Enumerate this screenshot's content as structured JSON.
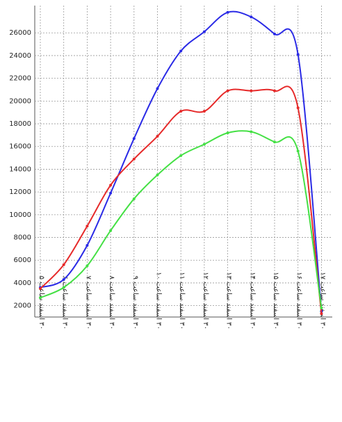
{
  "chart_data": {
    "type": "line",
    "categories": [
      "۳۰ اسفند ساعت ۵",
      "۳۰ اسفند ساعت ۶",
      "۳۰ اسفند ساعت ۷",
      "۳۰ اسفند ساعت ۸",
      "۳۰ اسفند ساعت ۹",
      "۳۰ اسفند ساعت ۱۰",
      "۳۰ اسفند ساعت ۱۱",
      "۳۰ اسفند ساعت ۱۲",
      "۳۰ اسفند ساعت ۱۳",
      "۳۰ اسفند ساعت ۱۴",
      "۳۰ اسفند ساعت ۱۵",
      "۳۰ اسفند ساعت ۱۶",
      "۳۰ اسفند ساعت ۱۷"
    ],
    "series": [
      {
        "color": "#2a2ae6",
        "values": [
          3600,
          4300,
          7300,
          11900,
          16700,
          21100,
          24400,
          26100,
          27800,
          27400,
          25900,
          24100,
          1500
        ]
      },
      {
        "color": "#e62a2a",
        "values": [
          3500,
          5600,
          9000,
          12600,
          14900,
          16900,
          19100,
          19100,
          20900,
          20900,
          20900,
          19400,
          1300
        ]
      },
      {
        "color": "#44e044",
        "values": [
          2700,
          3600,
          5500,
          8600,
          11400,
          13500,
          15200,
          16200,
          17200,
          17300,
          16400,
          15600,
          1800
        ]
      }
    ],
    "ylim": [
      1000,
      28400
    ],
    "yticks": [
      2000,
      4000,
      6000,
      8000,
      10000,
      12000,
      14000,
      16000,
      18000,
      20000,
      22000,
      24000,
      26000
    ],
    "grid": true
  }
}
